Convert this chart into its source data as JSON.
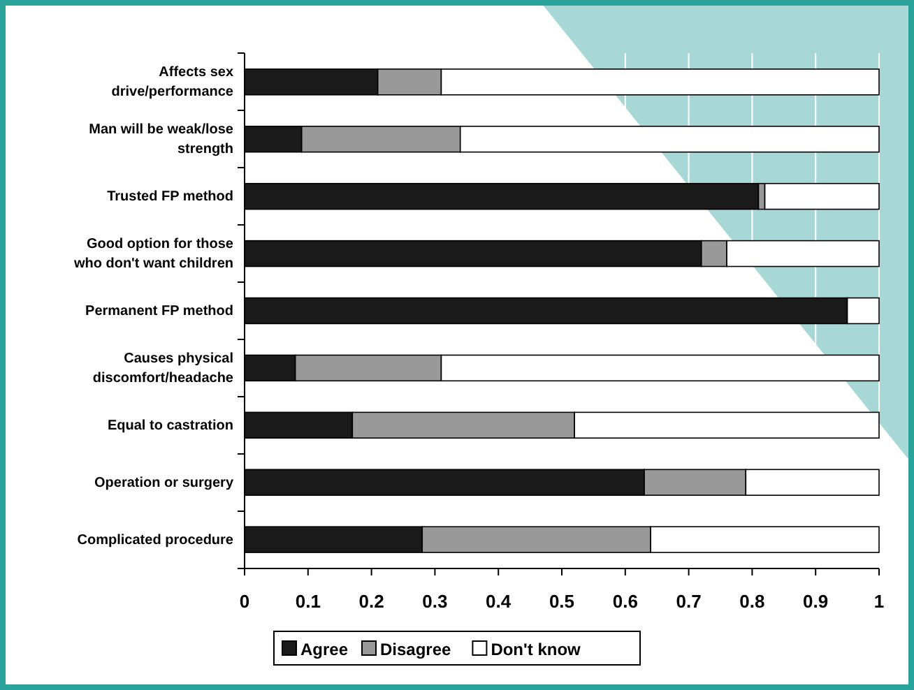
{
  "chart_data": {
    "type": "bar",
    "orientation": "horizontal",
    "stacked": true,
    "categories": [
      "Affects sex drive/performance",
      "Man will be weak/lose strength",
      "Trusted FP method",
      "Good option for those who don't want children",
      "Permanent FP method",
      "Causes physical discomfort/headache",
      "Equal to castration",
      "Operation or surgery",
      "Complicated procedure"
    ],
    "series": [
      {
        "name": "Agree",
        "color": "#1a1a1a",
        "values": [
          0.21,
          0.09,
          0.81,
          0.72,
          0.95,
          0.08,
          0.17,
          0.63,
          0.28
        ]
      },
      {
        "name": "Disagree",
        "color": "#999999",
        "values": [
          0.1,
          0.25,
          0.01,
          0.04,
          0,
          0.23,
          0.35,
          0.16,
          0.36
        ]
      },
      {
        "name": "Don't know",
        "color": "#ffffff",
        "values": [
          0.69,
          0.66,
          0.18,
          0.24,
          0.05,
          0.69,
          0.48,
          0.21,
          0.36
        ]
      }
    ],
    "xlim": [
      0,
      1
    ],
    "xticks": [
      0,
      0.1,
      0.2,
      0.3,
      0.4,
      0.5,
      0.6,
      0.7,
      0.8,
      0.9,
      1
    ],
    "grid": "x",
    "legend": "bottom"
  }
}
